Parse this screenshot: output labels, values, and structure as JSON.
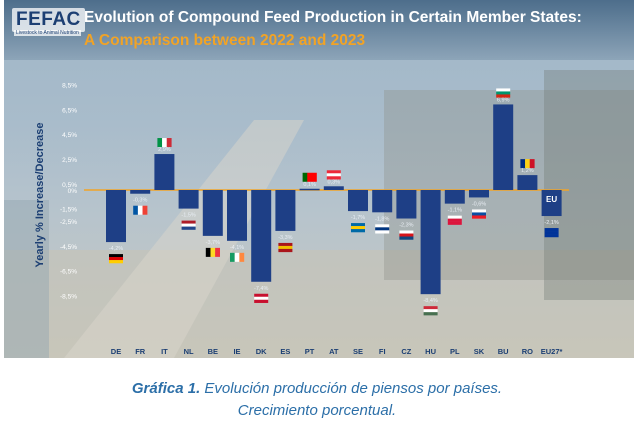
{
  "header": {
    "logo": "FEFAC",
    "logo_sub": "Livestock to Animal Nutrition",
    "title_line1": "Evolution of Compound Feed Production in Certain Member States:",
    "title_line2": "A Comparison between 2022 and 2023"
  },
  "chart_data": {
    "type": "bar",
    "ylabel": "Yearly % Increase/Decrease",
    "ylim": [
      -10.0,
      9.5
    ],
    "yticks": [
      "8,5%",
      "6,5%",
      "4,5%",
      "2,5%",
      "0,5%",
      "0%",
      "-1,5%",
      "-2,5%",
      "-4,5%",
      "-6,5%",
      "-8,5%"
    ],
    "categories": [
      "DE",
      "FR",
      "IT",
      "NL",
      "BE",
      "IE",
      "DK",
      "ES",
      "PT",
      "AT",
      "SE",
      "FI",
      "CZ",
      "HU",
      "PL",
      "SK",
      "BU",
      "RO",
      "EU27*"
    ],
    "values": [
      -4.2,
      -0.3,
      2.9,
      -1.5,
      -3.7,
      -4.1,
      -7.4,
      -3.3,
      0.1,
      0.3,
      -1.7,
      -1.8,
      -2.3,
      -8.4,
      -1.1,
      -0.6,
      6.9,
      1.2,
      -2.1
    ],
    "value_labels": [
      "-4,2%",
      "-0,3%",
      "2,9%",
      "-1,5%",
      "-3,7%",
      "-4,1%",
      "-7,4%",
      "-3,3%",
      "0,1%",
      "0,3%",
      "-1,7%",
      "-1,8%",
      "-2,3%",
      "-8,4%",
      "-1,1%",
      "-0,6%",
      "6,9%",
      "1,2%",
      "-2,1%"
    ],
    "bar_color": "#1e3f86",
    "zero_line_color": "#f1a326",
    "eu_bar_label": "EU",
    "grid": false,
    "legend": "none"
  },
  "caption": {
    "label": "Gráfica 1.",
    "line1": " Evolución producción de piensos por países.",
    "line2": "Crecimiento porcentual."
  }
}
